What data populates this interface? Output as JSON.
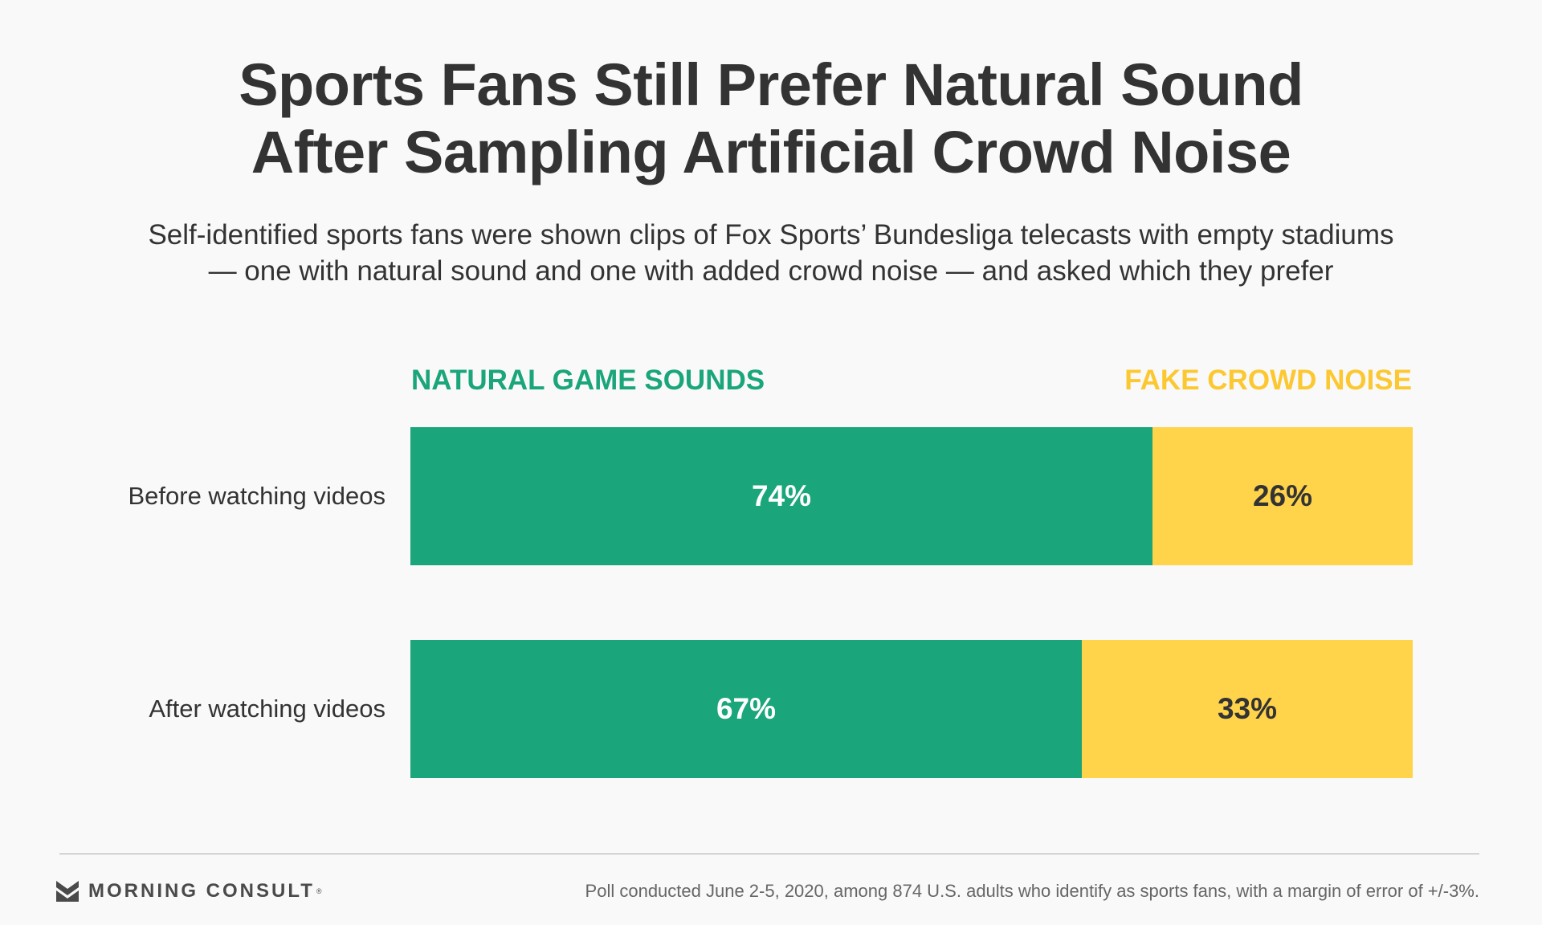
{
  "title": {
    "line1": "Sports Fans Still Prefer Natural Sound",
    "line2": "After Sampling Artificial Crowd Noise"
  },
  "subtitle": {
    "line1": "Self-identified sports fans were shown clips of Fox Sports’ Bundesliga telecasts with empty stadiums",
    "line2": "— one with natural sound and one with added crowd noise — and asked which they prefer"
  },
  "chart_data": {
    "type": "bar",
    "orientation": "horizontal-stacked-100",
    "categories": [
      "Before watching videos",
      "After watching videos"
    ],
    "series": [
      {
        "name": "NATURAL GAME SOUNDS",
        "values": [
          74,
          67
        ],
        "labels": [
          "74%",
          "67%"
        ],
        "color": "#1aa57a"
      },
      {
        "name": "FAKE CROWD NOISE",
        "values": [
          26,
          33
        ],
        "labels": [
          "26%",
          "33%"
        ],
        "color": "#ffd34a"
      }
    ],
    "legend": {
      "natural": "NATURAL GAME SOUNDS",
      "fake": "FAKE CROWD NOISE",
      "placement": "top"
    },
    "xlim": [
      0,
      100
    ]
  },
  "footer": {
    "logo_text": "MORNING CONSULT",
    "logo_tm": "®",
    "logo_icon": "morning-consult-logo-icon",
    "note": "Poll conducted June 2-5, 2020, among 874 U.S. adults who identify as sports fans, with a margin of error of +/-3%."
  }
}
